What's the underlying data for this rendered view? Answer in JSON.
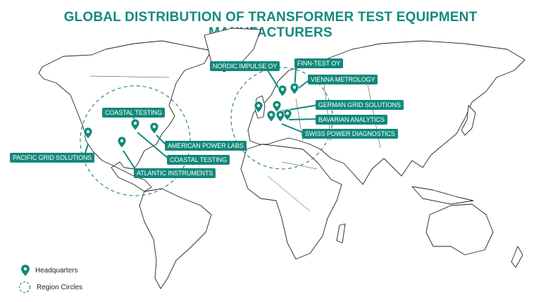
{
  "title": "GLOBAL DISTRIBUTION OF TRANSFORMER TEST EQUIPMENT MANUFACTURERS",
  "accent_color": "#12897a",
  "manufacturers": [
    {
      "name": "PACIFIC GRID SOLUTIONS",
      "region": "North America"
    },
    {
      "name": "COASTAL TESTING",
      "region": "North America"
    },
    {
      "name": "AMERICAN POWER LABS",
      "region": "North America"
    },
    {
      "name": "COASTAL TESTING",
      "region": "North America"
    },
    {
      "name": "ATLANTIC INSTRUMENTS",
      "region": "North America"
    },
    {
      "name": "NORDIC IMPULSE OY",
      "region": "Europe"
    },
    {
      "name": "FINN-TEST OY",
      "region": "Europe"
    },
    {
      "name": "VIENNA METROLOGY",
      "region": "Europe"
    },
    {
      "name": "GERMAN GRID SOLUTIONS",
      "region": "Europe"
    },
    {
      "name": "BAVARIAN ANALYTICS",
      "region": "Europe"
    },
    {
      "name": "SWISS POWER DIAGNOSTICS",
      "region": "Europe"
    }
  ],
  "legend": {
    "headquarters": "Headquarters",
    "region_circles": "Region Circles"
  },
  "icons": {
    "pin": "map-pin-icon",
    "circle": "dashed-circle-icon"
  }
}
